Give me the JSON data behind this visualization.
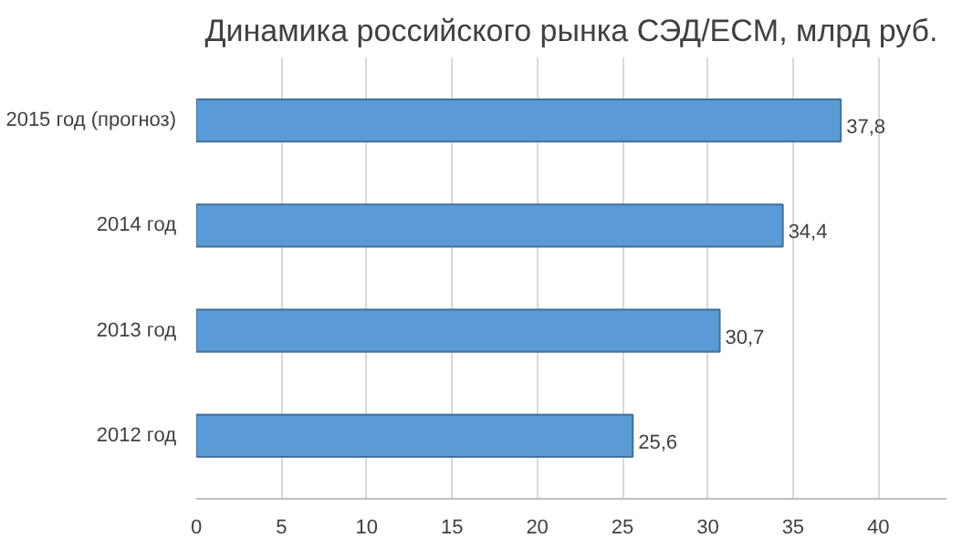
{
  "chart_data": {
    "type": "bar",
    "orientation": "horizontal",
    "title": "Динамика российского рынка СЭД/ECM, млрд руб.",
    "categories": [
      "2015 год (прогноз)",
      "2014 год",
      "2013 год",
      "2012 год"
    ],
    "values": [
      37.8,
      34.4,
      30.7,
      25.6
    ],
    "value_labels": [
      "37,8",
      "34,4",
      "30,7",
      "25,6"
    ],
    "color": "#5b9bd5",
    "xlim": [
      0,
      44
    ],
    "xticks": [
      0,
      5,
      10,
      15,
      20,
      25,
      30,
      35,
      40
    ],
    "grid": "x"
  }
}
